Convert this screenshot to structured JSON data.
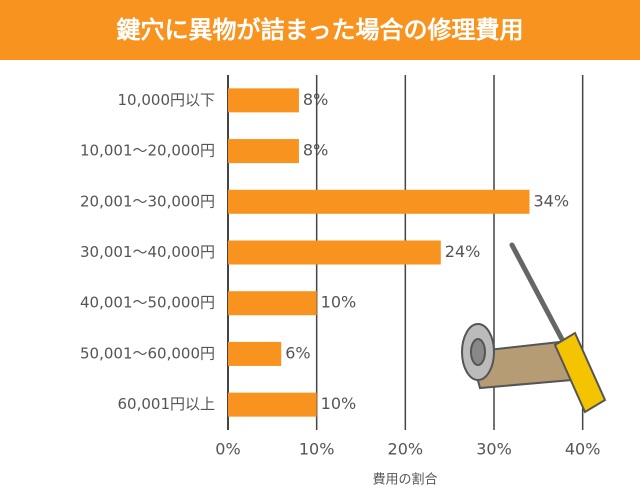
{
  "chart_data": {
    "type": "barh",
    "title": "鍵穴に異物が詰まった場合の修理費用",
    "categories": [
      "10,000円以下",
      "10,001〜20,000円",
      "20,001〜30,000円",
      "30,001〜40,000円",
      "40,001〜50,000円",
      "50,001〜60,000円",
      "60,001円以上"
    ],
    "values": [
      8,
      8,
      34,
      24,
      10,
      6,
      10
    ],
    "value_labels": [
      "8%",
      "8%",
      "34%",
      "24%",
      "10%",
      "6%",
      "10%"
    ],
    "color": "#f7931e",
    "xlabel": "費用の割合",
    "xlim": [
      0,
      45
    ],
    "xticks": [
      {
        "value": 0,
        "label": "0%"
      },
      {
        "value": 10,
        "label": "10%"
      },
      {
        "value": 20,
        "label": "20%"
      },
      {
        "value": 30,
        "label": "30%"
      },
      {
        "value": 40,
        "label": "40%"
      }
    ],
    "grid": true
  }
}
